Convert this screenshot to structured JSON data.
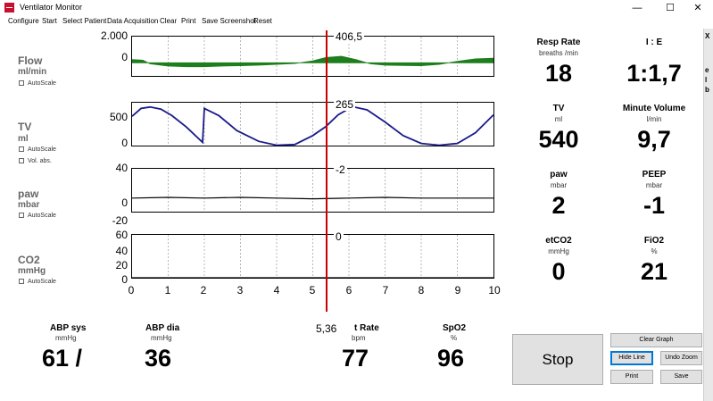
{
  "window": {
    "title": "Ventilator Monitor",
    "controls": {
      "minimize": "—",
      "maximize": "☐",
      "close": "✕"
    }
  },
  "menu": [
    "Configure",
    "Start",
    "Select Patient",
    "Data Acquisition",
    "Clear",
    "Print",
    "Save Screenshot",
    "Reset"
  ],
  "channels": {
    "flow": {
      "name": "Flow",
      "unit": "ml/min",
      "autoscale": "AutoScale",
      "ytick_top": "2.000",
      "ytick_zero": "0",
      "cursor_value": "406,5"
    },
    "tv": {
      "name": "TV",
      "unit": "ml",
      "autoscale": "AutoScale",
      "vol_abs": "Vol. abs.",
      "ytick_top": "500",
      "ytick_zero": "0",
      "cursor_value": "265"
    },
    "paw": {
      "name": "paw",
      "unit": "mbar",
      "autoscale": "AutoScale",
      "ytick_top": "40",
      "ytick_zero": "0",
      "ytick_neg": "-20",
      "cursor_value": "-2"
    },
    "co2": {
      "name": "CO2",
      "unit": "mmHg",
      "autoscale": "AutoScale",
      "ytick_1": "60",
      "ytick_2": "40",
      "ytick_3": "20",
      "ytick_4": "0",
      "cursor_value": "0"
    }
  },
  "x_ticks": [
    "0",
    "1",
    "2",
    "3",
    "4",
    "5",
    "6",
    "7",
    "8",
    "9",
    "10"
  ],
  "cursor_x": "5,36",
  "chart_data": {
    "type": "line",
    "x_range": [
      0,
      10
    ],
    "cursor_at": 5.36,
    "series": [
      {
        "name": "Flow",
        "color": "#1e7e1e",
        "ylim": [
          -1000,
          2000
        ],
        "x": [
          0,
          0.3,
          0.5,
          1,
          1.5,
          2,
          2.5,
          3,
          3.5,
          4,
          4.5,
          5,
          5.36,
          5.8,
          6.2,
          6.6,
          7,
          7.5,
          8,
          8.5,
          9,
          9.5,
          10
        ],
        "y": [
          250,
          200,
          -80,
          -250,
          -300,
          -300,
          -250,
          -220,
          -180,
          -120,
          -50,
          150,
          406.5,
          500,
          250,
          -80,
          -180,
          -200,
          -220,
          -120,
          120,
          300,
          350
        ]
      },
      {
        "name": "TV",
        "color": "#1a1a8c",
        "ylim": [
          0,
          600
        ],
        "x": [
          0,
          0.25,
          0.5,
          0.8,
          1.1,
          1.5,
          1.95,
          2.0,
          2.4,
          2.9,
          3.5,
          4.0,
          4.5,
          5.0,
          5.36,
          5.7,
          6.1,
          6.5,
          7.0,
          7.5,
          8.0,
          8.5,
          9.0,
          9.5,
          10.0
        ],
        "y": [
          410,
          520,
          540,
          510,
          420,
          260,
          45,
          520,
          420,
          210,
          60,
          5,
          15,
          140,
          265,
          430,
          545,
          500,
          330,
          140,
          30,
          5,
          30,
          180,
          430
        ]
      },
      {
        "name": "paw",
        "color": "#000000",
        "ylim": [
          -20,
          40
        ],
        "x": [
          0,
          1,
          2,
          3,
          4,
          5,
          6,
          7,
          8,
          9,
          10
        ],
        "y": [
          -1,
          0,
          -1,
          0,
          -1,
          -2,
          -1,
          0,
          -1,
          -1,
          -1
        ]
      },
      {
        "name": "CO2",
        "color": "#000000",
        "ylim": [
          0,
          60
        ],
        "x": [
          0,
          10
        ],
        "y": [
          0,
          0
        ]
      }
    ]
  },
  "vitals_right": [
    {
      "label": "Resp Rate",
      "unit": "breaths /min",
      "value": "18"
    },
    {
      "label": "I : E",
      "unit": "",
      "value": "1:1,7"
    },
    {
      "label": "TV",
      "unit": "ml",
      "value": "540"
    },
    {
      "label": "Minute Volume",
      "unit": "l/min",
      "value": "9,7"
    },
    {
      "label": "paw",
      "unit": "mbar",
      "value": "2"
    },
    {
      "label": "PEEP",
      "unit": "mbar",
      "value": "-1"
    },
    {
      "label": "etCO2",
      "unit": "mmHg",
      "value": "0"
    },
    {
      "label": "FiO2",
      "unit": "%",
      "value": "21"
    }
  ],
  "vitals_bottom": [
    {
      "label": "ABP sys",
      "unit": "mmHg",
      "value": "61 /"
    },
    {
      "label": "ABP dia",
      "unit": "mmHg",
      "value": "36"
    },
    {
      "label": "t Rate",
      "unit": "bpm",
      "value": "77"
    },
    {
      "label": "SpO2",
      "unit": "%",
      "value": "96"
    }
  ],
  "buttons": {
    "stop": "Stop",
    "clear_graph": "Clear Graph",
    "hide_line": "Hide Line",
    "undo_zoom": "Undo Zoom",
    "print": "Print",
    "save": "Save"
  },
  "edge_marks": [
    "X",
    "e",
    "l",
    "b"
  ]
}
